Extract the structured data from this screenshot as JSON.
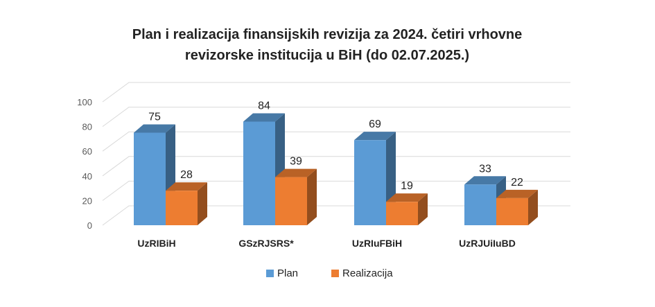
{
  "chart_data": {
    "type": "bar",
    "title_lines": [
      "Plan i realizacija finansijskih revizija za 2024. četiri vrhovne",
      "revizorske institucija u BiH (do 02.07.2025.)"
    ],
    "categories": [
      "UzRIBiH",
      "GSzRJSRS*",
      "UzRIuFBiH",
      "UzRJUiIuBD"
    ],
    "series": [
      {
        "name": "Plan",
        "values": [
          75,
          84,
          69,
          33
        ],
        "color": "#5B9BD5"
      },
      {
        "name": "Realizacija",
        "values": [
          28,
          39,
          19,
          22
        ],
        "color": "#ED7D31"
      }
    ],
    "ylim": [
      0,
      100
    ],
    "yticks": [
      0,
      20,
      40,
      60,
      80,
      100
    ],
    "grid": true,
    "legend": "bottom",
    "style": "3d-clustered-column"
  }
}
